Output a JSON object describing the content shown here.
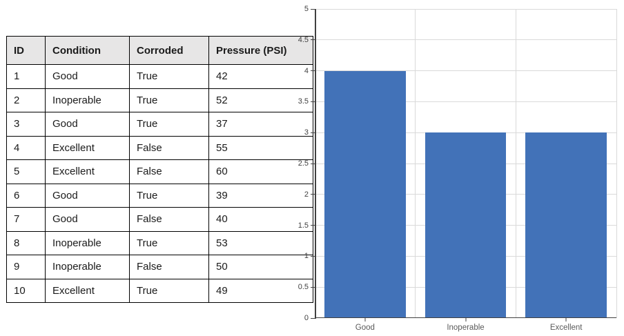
{
  "table": {
    "headers": [
      "ID",
      "Condition",
      "Corroded",
      "Pressure (PSI)"
    ],
    "rows": [
      [
        "1",
        "Good",
        "True",
        "42"
      ],
      [
        "2",
        "Inoperable",
        "True",
        "52"
      ],
      [
        "3",
        "Good",
        "True",
        "37"
      ],
      [
        "4",
        "Excellent",
        "False",
        "55"
      ],
      [
        "5",
        "Excellent",
        "False",
        "60"
      ],
      [
        "6",
        "Good",
        "True",
        "39"
      ],
      [
        "7",
        "Good",
        "False",
        "40"
      ],
      [
        "8",
        "Inoperable",
        "True",
        "53"
      ],
      [
        "9",
        "Inoperable",
        "False",
        "50"
      ],
      [
        "10",
        "Excellent",
        "True",
        "49"
      ]
    ]
  },
  "chart_data": {
    "type": "bar",
    "categories": [
      "Good",
      "Inoperable",
      "Excellent"
    ],
    "values": [
      4,
      3,
      3
    ],
    "title": "",
    "xlabel": "",
    "ylabel": "",
    "ylim": [
      0,
      5
    ],
    "ytick_step": 0.5,
    "grid": true,
    "legend": "none",
    "bar_color": "#4272B8",
    "gridline_color": "#D9D9D9",
    "axis_color": "#404040",
    "xtick_label_color": "#595959",
    "ytick_label_color": "#404040"
  },
  "colors": {
    "table_header_bg": "#E7E6E6",
    "table_border": "#000000",
    "background": "#FFFFFF"
  }
}
